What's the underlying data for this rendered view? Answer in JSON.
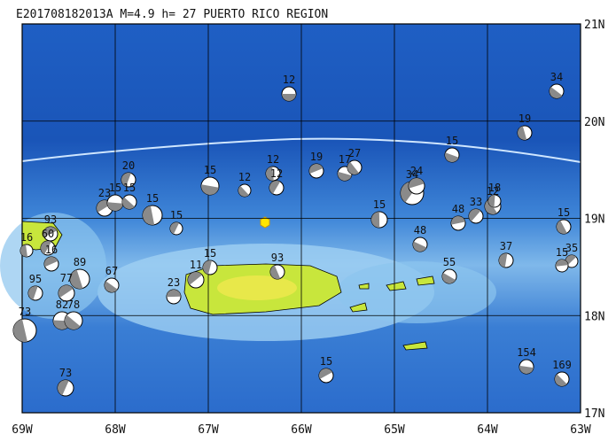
{
  "title": "E201708182013A  M=4.9  h= 27 PUERTO RICO REGION",
  "lat_labels": [
    "21N",
    "20N",
    "19N",
    "18N",
    "17N"
  ],
  "lon_labels": [
    "69W",
    "68W",
    "67W",
    "66W",
    "65W",
    "64W",
    "63W"
  ],
  "events": [
    "12",
    "34",
    "19",
    "20",
    "23",
    "15",
    "15",
    "15",
    "15",
    "93",
    "15",
    "12",
    "12",
    "12",
    "19",
    "17",
    "27",
    "15",
    "34",
    "24",
    "15",
    "12",
    "18",
    "33",
    "48",
    "48",
    "15",
    "37",
    "35",
    "15",
    "55",
    "93",
    "15",
    "11",
    "23",
    "67",
    "89",
    "95",
    "77",
    "82",
    "78",
    "73",
    "73",
    "15",
    "154",
    "169",
    "16",
    "60",
    "16"
  ]
}
